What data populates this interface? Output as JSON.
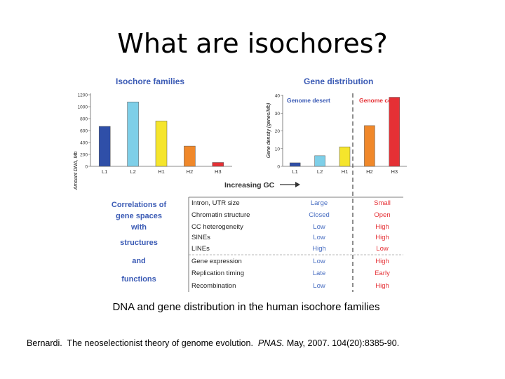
{
  "slide": {
    "title": "What are isochores?",
    "caption": "DNA and gene distribution in the human isochore families",
    "citation": {
      "authors": "Bernardi.",
      "article": "The neoselectionist theory of genome evolution.",
      "journal": "PNAS.",
      "details": "May, 2007. 104(20):8385-90."
    }
  },
  "figure": {
    "arrow_label": "Increasing GC",
    "correlations_title": [
      "Correlations of",
      "gene spaces",
      "with",
      "structures",
      "and",
      "functions"
    ],
    "table": {
      "rows": [
        {
          "feature": "Intron, UTR size",
          "desert": "Large",
          "core": "Small"
        },
        {
          "feature": "Chromatin structure",
          "desert": "Closed",
          "core": "Open"
        },
        {
          "feature": "CC heterogeneity",
          "desert": "Low",
          "core": "High"
        },
        {
          "feature": "SINEs",
          "desert": "Low",
          "core": "High"
        },
        {
          "feature": "LINEs",
          "desert": "High",
          "core": "Low"
        },
        {
          "feature": "Gene expression",
          "desert": "Low",
          "core": "High"
        },
        {
          "feature": "Replication timing",
          "desert": "Late",
          "core": "Early"
        },
        {
          "feature": "Recombination",
          "desert": "Low",
          "core": "High"
        }
      ]
    },
    "colors": {
      "L1": "#2f4fa8",
      "L2": "#7ecfe8",
      "H1": "#f5e52c",
      "H2": "#f0882a",
      "H3": "#e53035",
      "heading": "#3b5bb5",
      "low_value": "#4a6fc2",
      "high_value": "#e53035"
    }
  },
  "chart_data": [
    {
      "type": "bar",
      "title": "Isochore families",
      "xlabel": "",
      "ylabel": "Amount DNA, Mb",
      "categories": [
        "L1",
        "L2",
        "H1",
        "H2",
        "H3"
      ],
      "values": [
        670,
        1080,
        760,
        340,
        65
      ],
      "ylim": [
        0,
        1200
      ],
      "yticks": [
        0,
        200,
        400,
        600,
        800,
        1000,
        1200
      ],
      "grid": false
    },
    {
      "type": "bar",
      "title": "Gene distribution",
      "xlabel": "",
      "ylabel": "Gene density (genes/Mb)",
      "categories": [
        "L1",
        "L2",
        "H1",
        "H2",
        "H3"
      ],
      "values": [
        2,
        6,
        11,
        23,
        39
      ],
      "ylim": [
        0,
        40
      ],
      "yticks": [
        0,
        10,
        20,
        30,
        40
      ],
      "grid": false,
      "annotations": [
        "Genome desert",
        "Genome core"
      ]
    }
  ]
}
